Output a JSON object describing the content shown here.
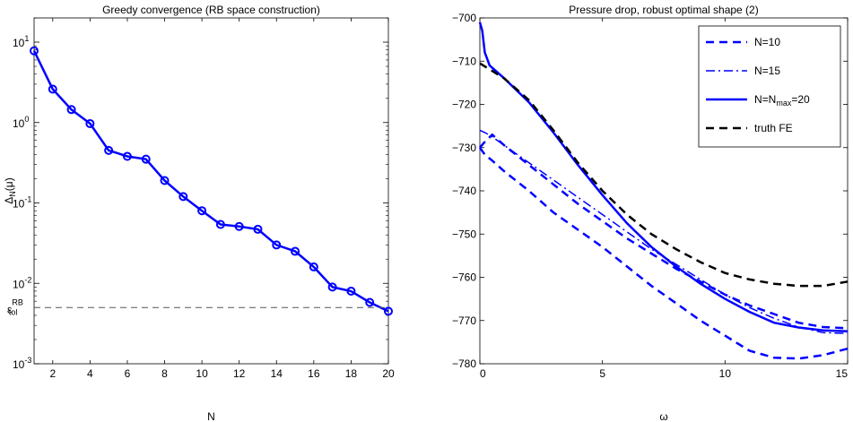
{
  "chart_data": [
    {
      "type": "line",
      "title": "Greedy convergence (RB space construction)",
      "xlabel": "N",
      "ylabel": {
        "main": "Δ",
        "sub": "N",
        "tail": "(μ)"
      },
      "yscale": "log",
      "xlim": [
        1,
        20
      ],
      "ylim": [
        0.001,
        20
      ],
      "xticks": [
        2,
        4,
        6,
        8,
        10,
        12,
        14,
        16,
        18,
        20
      ],
      "yticks": [
        {
          "value": 0.001,
          "base": "10",
          "exp": "-3"
        },
        {
          "value": 0.01,
          "base": "10",
          "exp": "-2"
        },
        {
          "value": 0.1,
          "base": "10",
          "exp": "-1"
        },
        {
          "value": 1,
          "base": "10",
          "exp": "0"
        },
        {
          "value": 10,
          "base": "10",
          "exp": "1"
        }
      ],
      "series": [
        {
          "style": "solid-circle",
          "color": "#0000ff",
          "x": [
            1,
            2,
            3,
            4,
            5,
            6,
            7,
            8,
            9,
            10,
            11,
            12,
            13,
            14,
            15,
            16,
            17,
            18,
            19,
            20
          ],
          "y": [
            7.8,
            2.6,
            1.45,
            0.97,
            0.45,
            0.38,
            0.35,
            0.19,
            0.12,
            0.08,
            0.054,
            0.051,
            0.047,
            0.03,
            0.025,
            0.016,
            0.009,
            0.008,
            0.0058,
            0.0045
          ]
        }
      ],
      "reference_line": {
        "y": 0.005,
        "color": "#555555",
        "label": {
          "main": "ε",
          "sup": "RB",
          "sub": "tol"
        }
      },
      "grid": false
    },
    {
      "type": "line",
      "title": "Pressure drop, robust optimal shape (2)",
      "xlabel": "ω",
      "xlim": [
        0,
        15
      ],
      "ylim": [
        -780,
        -700
      ],
      "xticks": [
        0,
        5,
        10,
        15
      ],
      "yticks": [
        -780,
        -770,
        -760,
        -750,
        -740,
        -730,
        -720,
        -710,
        -700
      ],
      "legend_position": "top-right",
      "series": [
        {
          "name": "N=10",
          "style": "dashed",
          "color": "#0000ff",
          "points_primary": [
            [
              0,
              -730
            ],
            [
              0.2,
              -731.6
            ],
            [
              0.5,
              -733
            ],
            [
              1,
              -735.5
            ],
            [
              2,
              -740
            ],
            [
              3,
              -745
            ],
            [
              4,
              -749
            ],
            [
              5,
              -753
            ],
            [
              6,
              -757.5
            ],
            [
              7,
              -762
            ],
            [
              8,
              -766
            ],
            [
              9,
              -770
            ],
            [
              10,
              -773.5
            ],
            [
              11,
              -777
            ],
            [
              12,
              -778.6
            ],
            [
              13,
              -778.8
            ],
            [
              14,
              -778
            ],
            [
              15,
              -776.5
            ]
          ],
          "points_secondary": [
            [
              0,
              -730
            ],
            [
              0.15,
              -729
            ],
            [
              0.5,
              -727
            ],
            [
              1,
              -729.5
            ],
            [
              2,
              -734
            ],
            [
              3,
              -738.5
            ],
            [
              4,
              -743
            ],
            [
              5,
              -747
            ],
            [
              6,
              -751
            ],
            [
              7,
              -754.5
            ],
            [
              8,
              -758
            ],
            [
              9,
              -761
            ],
            [
              10,
              -764
            ],
            [
              11,
              -766.5
            ],
            [
              12,
              -768.5
            ],
            [
              13,
              -770.5
            ],
            [
              14,
              -771.5
            ],
            [
              15,
              -771.8
            ]
          ]
        },
        {
          "name": "N=15",
          "style": "dashdot",
          "color": "#0000ff",
          "points": [
            [
              0,
              -726
            ],
            [
              0.2,
              -726.5
            ],
            [
              0.5,
              -727.5
            ],
            [
              1,
              -729.5
            ],
            [
              2,
              -733.5
            ],
            [
              3,
              -737.5
            ],
            [
              4,
              -741.5
            ],
            [
              5,
              -745.5
            ],
            [
              6,
              -749.5
            ],
            [
              7,
              -753.5
            ],
            [
              8,
              -757
            ],
            [
              9,
              -760.5
            ],
            [
              10,
              -764
            ],
            [
              11,
              -767
            ],
            [
              12,
              -769.5
            ],
            [
              13,
              -771.5
            ],
            [
              14,
              -772.8
            ],
            [
              15,
              -773
            ]
          ]
        },
        {
          "name": {
            "main": "N=N",
            "sub": "max",
            "tail": "=20"
          },
          "style": "solid",
          "color": "#0000ff",
          "points": [
            [
              0,
              -701
            ],
            [
              0.1,
              -703
            ],
            [
              0.2,
              -708
            ],
            [
              0.4,
              -711
            ],
            [
              1,
              -714
            ],
            [
              2,
              -719.5
            ],
            [
              3,
              -726.5
            ],
            [
              4,
              -734
            ],
            [
              5,
              -741
            ],
            [
              6,
              -747.5
            ],
            [
              7,
              -753
            ],
            [
              8,
              -757.5
            ],
            [
              9,
              -761.5
            ],
            [
              10,
              -765
            ],
            [
              11,
              -768
            ],
            [
              12,
              -770.5
            ],
            [
              13,
              -771.6
            ],
            [
              14,
              -772.3
            ],
            [
              15,
              -772.5
            ]
          ]
        },
        {
          "name": "truth FE",
          "style": "dashed",
          "color": "#000000",
          "points": [
            [
              0,
              -710.5
            ],
            [
              1,
              -714
            ],
            [
              2,
              -719
            ],
            [
              3,
              -726
            ],
            [
              4,
              -733.5
            ],
            [
              5,
              -740
            ],
            [
              6,
              -745.5
            ],
            [
              7,
              -750
            ],
            [
              8,
              -753.5
            ],
            [
              9,
              -756.5
            ],
            [
              10,
              -759
            ],
            [
              11,
              -760.5
            ],
            [
              12,
              -761.5
            ],
            [
              13,
              -762
            ],
            [
              14,
              -762
            ],
            [
              15,
              -761
            ]
          ]
        }
      ],
      "grid": false
    }
  ]
}
